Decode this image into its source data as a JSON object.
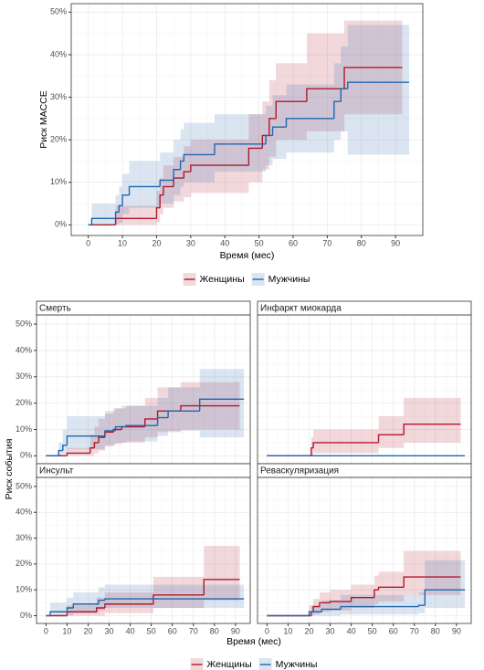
{
  "chart_data": [
    {
      "type": "step",
      "xlabel": "Время (мес)",
      "ylabel": "Риск MACCE",
      "xlim": [
        -5,
        98
      ],
      "ylim": [
        -2.5,
        52
      ],
      "xticks": [
        0,
        10,
        20,
        30,
        40,
        50,
        60,
        70,
        80,
        90
      ],
      "yticks": [
        {
          "value": 0,
          "label": "0%"
        },
        {
          "value": 10,
          "label": "10%"
        },
        {
          "value": 20,
          "label": "20%"
        },
        {
          "value": 30,
          "label": "30%"
        },
        {
          "value": 40,
          "label": "40%"
        },
        {
          "value": 50,
          "label": "50%"
        }
      ],
      "series": [
        {
          "name": "Женщины",
          "color": "#b2182b",
          "x": [
            0,
            8,
            20,
            21,
            22,
            25,
            28,
            30,
            47,
            51,
            53,
            55,
            64,
            75,
            92
          ],
          "values": [
            0,
            1.5,
            4,
            7,
            9,
            11,
            12.5,
            14,
            18,
            21,
            25,
            29,
            32,
            37,
            37
          ],
          "lower": [
            0,
            0,
            0.5,
            2.5,
            4,
            5.5,
            6.5,
            7.5,
            10,
            13,
            16,
            20,
            22,
            26,
            26
          ],
          "upper": [
            0,
            4.5,
            8,
            11,
            14,
            16,
            18.5,
            20,
            26,
            29,
            34,
            38,
            45,
            48,
            48
          ]
        },
        {
          "name": "Мужчины",
          "color": "#2166ac",
          "x": [
            0,
            1,
            8,
            9,
            10,
            12,
            21,
            25,
            27,
            28,
            37,
            52,
            54,
            58,
            72,
            74,
            76,
            94
          ],
          "values": [
            0,
            1.5,
            3,
            4.5,
            7,
            9,
            10.5,
            13,
            15,
            16.5,
            19,
            21,
            23,
            25,
            29,
            32,
            33.5,
            33.5
          ],
          "lower": [
            0,
            0,
            0,
            0.5,
            2.5,
            4,
            5,
            7,
            9,
            10,
            12.5,
            14,
            15.5,
            17,
            20,
            22,
            16.5,
            16.5
          ],
          "upper": [
            0,
            5,
            7,
            9,
            12,
            15,
            17,
            20,
            22.5,
            24,
            26,
            28,
            30.5,
            33,
            38,
            42,
            47,
            47
          ]
        }
      ]
    },
    {
      "type": "step",
      "title": "Смерть",
      "series": [
        {
          "color": "#b2182b",
          "x": [
            0,
            10,
            21,
            23,
            25,
            28,
            32,
            36,
            47,
            53,
            64,
            92
          ],
          "values": [
            0,
            1,
            3,
            5,
            7,
            9,
            10,
            11,
            14,
            17,
            19,
            19
          ],
          "lower": [
            0,
            0,
            0,
            1,
            2,
            3.5,
            4.5,
            5,
            7,
            9,
            10,
            10
          ],
          "upper": [
            0,
            3,
            8,
            11,
            14,
            16,
            18,
            19,
            22,
            26,
            28,
            28
          ]
        },
        {
          "color": "#2166ac",
          "x": [
            0,
            6,
            8,
            10,
            28,
            33,
            38,
            53,
            58,
            73,
            94
          ],
          "values": [
            0,
            2,
            4,
            7.5,
            9.5,
            11,
            11.5,
            14.5,
            17,
            21.5,
            21.5
          ],
          "lower": [
            0,
            0,
            0.5,
            2.5,
            4,
            5,
            5.5,
            7.5,
            9.5,
            7,
            7
          ],
          "upper": [
            0,
            5,
            10,
            15,
            17,
            18,
            19,
            22,
            26,
            33,
            33
          ]
        }
      ]
    },
    {
      "type": "step",
      "title": "Инфаркт миокарда",
      "series": [
        {
          "color": "#b2182b",
          "x": [
            0,
            21,
            22,
            53,
            65,
            92
          ],
          "values": [
            0,
            3,
            5,
            8,
            12,
            12
          ],
          "lower": [
            0,
            0,
            1,
            3,
            5,
            5
          ],
          "upper": [
            0,
            7,
            10,
            15,
            22,
            22
          ]
        },
        {
          "color": "#2166ac",
          "x": [
            0,
            94
          ],
          "values": [
            0,
            0
          ],
          "lower": [
            0,
            0
          ],
          "upper": [
            0,
            0
          ]
        }
      ]
    },
    {
      "type": "step",
      "title": "Инсульт",
      "series": [
        {
          "color": "#b2182b",
          "x": [
            0,
            10,
            24,
            28,
            51,
            75,
            92
          ],
          "values": [
            0,
            1.5,
            3,
            4.5,
            8,
            14,
            14
          ],
          "lower": [
            0,
            0,
            0,
            1,
            3,
            6,
            6
          ],
          "upper": [
            0,
            4,
            7,
            9,
            15,
            27,
            27
          ]
        },
        {
          "color": "#2166ac",
          "x": [
            0,
            2,
            10,
            13,
            25,
            28,
            94
          ],
          "values": [
            0,
            1.5,
            3,
            4.5,
            6,
            6.5,
            6.5
          ],
          "lower": [
            0,
            0,
            0,
            1,
            2,
            3,
            3
          ],
          "upper": [
            0,
            5,
            7,
            9,
            11,
            12,
            12
          ]
        }
      ]
    },
    {
      "type": "step",
      "title": "Реваскуляризация",
      "series": [
        {
          "color": "#b2182b",
          "x": [
            0,
            21,
            22,
            25,
            30,
            40,
            51,
            53,
            65,
            92
          ],
          "values": [
            0,
            1.5,
            3.5,
            5,
            5.5,
            7,
            10,
            11,
            15,
            15
          ],
          "lower": [
            0,
            0,
            0.5,
            1.5,
            2,
            3,
            4.5,
            5.5,
            8,
            8
          ],
          "upper": [
            0,
            4,
            6.5,
            9,
            10,
            12,
            15.5,
            17,
            25,
            25
          ]
        },
        {
          "color": "#2166ac",
          "x": [
            0,
            20,
            26,
            35,
            72,
            75,
            94
          ],
          "values": [
            0,
            1.5,
            2.5,
            3.5,
            4,
            10,
            10
          ],
          "lower": [
            0,
            0,
            0,
            0.5,
            1,
            3,
            3
          ],
          "upper": [
            0,
            4,
            6,
            8,
            9,
            21.5,
            21.5
          ]
        }
      ]
    }
  ],
  "facet": {
    "xlabel": "Время (мес)",
    "ylabel": "Риск события",
    "xlim": [
      -4.5,
      97
    ],
    "ylim": [
      -3,
      53.5
    ],
    "xticks": [
      0,
      10,
      20,
      30,
      40,
      50,
      60,
      70,
      80,
      90
    ],
    "yticks": [
      {
        "value": 0,
        "label": "0%"
      },
      {
        "value": 10,
        "label": "10%"
      },
      {
        "value": 20,
        "label": "20%"
      },
      {
        "value": 30,
        "label": "30%"
      },
      {
        "value": 40,
        "label": "40%"
      },
      {
        "value": 50,
        "label": "50%"
      }
    ],
    "legend": [
      {
        "name": "Женщины",
        "color": "#b2182b"
      },
      {
        "name": "Мужчины",
        "color": "#2166ac"
      }
    ]
  }
}
